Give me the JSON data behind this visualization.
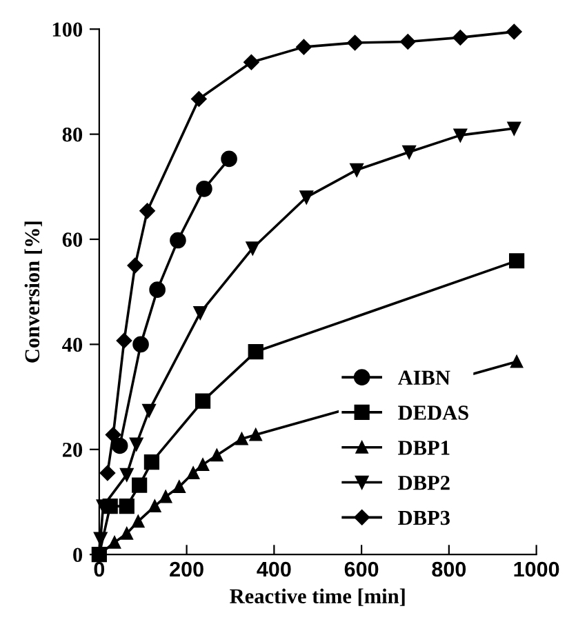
{
  "chart_data": {
    "type": "line",
    "xlabel": "Reactive time [min]",
    "ylabel": "Conversion [%]",
    "xlim": [
      0,
      1000
    ],
    "xticks": [
      0,
      200,
      400,
      600,
      800,
      1000
    ],
    "ylim": [
      0,
      100
    ],
    "yticks": [
      0,
      20,
      40,
      60,
      80,
      100
    ],
    "grid": false,
    "legend": "bottom right",
    "line_style": "solid",
    "series": [
      {
        "name": "AIBN",
        "color": "#000000",
        "marker": "circle",
        "x": [
          47,
          95,
          133,
          180,
          240,
          297
        ],
        "values": [
          20.7,
          40,
          50.4,
          59.8,
          69.6,
          75.3
        ]
      },
      {
        "name": "DEDAS",
        "color": "#000000",
        "marker": "square",
        "x": [
          0,
          25,
          63,
          92,
          120,
          237,
          358,
          955
        ],
        "values": [
          0,
          9.2,
          9.2,
          13.2,
          17.6,
          29.2,
          38.6,
          55.9
        ]
      },
      {
        "name": "DBP1",
        "color": "#000000",
        "marker": "triangle",
        "x": [
          0,
          35,
          63,
          89,
          127,
          152,
          183,
          215,
          237,
          269,
          326,
          358,
          955
        ],
        "values": [
          0,
          2.3,
          4,
          6.3,
          9.2,
          11,
          12.9,
          15.5,
          17.1,
          18.9,
          22,
          22.8,
          36.7
        ]
      },
      {
        "name": "DBP2",
        "color": "#000000",
        "marker": "triangle_down",
        "x": [
          3,
          9,
          63,
          85,
          114,
          231,
          351,
          474,
          589,
          709,
          826,
          949
        ],
        "values": [
          3,
          9.2,
          15.2,
          21,
          27.4,
          46,
          58.3,
          68,
          73.2,
          76.6,
          79.8,
          81.1
        ]
      },
      {
        "name": "DBP3",
        "color": "#000000",
        "marker": "diamond",
        "x": [
          19,
          32,
          57,
          82,
          110,
          228,
          348,
          468,
          585,
          706,
          826,
          949
        ],
        "values": [
          15.5,
          22.8,
          40.7,
          55,
          65.4,
          86.7,
          93.7,
          96.6,
          97.4,
          97.6,
          98.4,
          99.5
        ]
      }
    ]
  }
}
